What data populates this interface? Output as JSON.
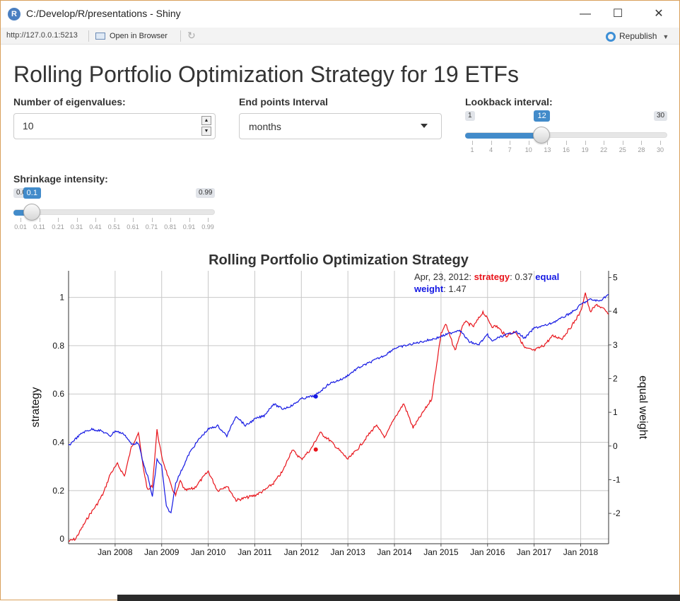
{
  "window": {
    "title": "C:/Develop/R/presentations - Shiny",
    "icon_letter": "R",
    "minimize": "—",
    "maximize": "☐",
    "close": "✕"
  },
  "toolbar": {
    "url": "http://127.0.0.1:5213",
    "open_in_browser": "Open in Browser",
    "republish": "Republish"
  },
  "page": {
    "title": "Rolling Portfolio Optimization Strategy for 19 ETFs"
  },
  "inputs": {
    "eigen": {
      "label": "Number of eigenvalues:",
      "value": "10"
    },
    "endpoints": {
      "label": "End points Interval",
      "selected": "months"
    },
    "lookback": {
      "label": "Lookback interval:",
      "min": "1",
      "max": "30",
      "value": "12",
      "fraction": 0.3793,
      "ticks": [
        "1",
        "4",
        "7",
        "10",
        "13",
        "16",
        "19",
        "22",
        "25",
        "28",
        "30"
      ]
    },
    "shrink": {
      "label": "Shrinkage intensity:",
      "min": "0.01",
      "max": "0.99",
      "value": "0.1",
      "fraction": 0.0918,
      "ticks": [
        "0.01",
        "0.11",
        "0.21",
        "0.31",
        "0.41",
        "0.51",
        "0.61",
        "0.71",
        "0.81",
        "0.91",
        "0.99"
      ]
    }
  },
  "chart_data": {
    "type": "line",
    "title": "Rolling Portfolio Optimization Strategy",
    "ylabel": "strategy",
    "y2label": "equal weight",
    "ylim": [
      -0.02,
      1.11
    ],
    "y2lim": [
      -2.9,
      5.2
    ],
    "yticks": [
      "0",
      "0.2",
      "0.4",
      "0.6",
      "0.8",
      "1"
    ],
    "y2ticks": [
      "-2",
      "-1",
      "0",
      "1",
      "2",
      "3",
      "4",
      "5"
    ],
    "xlim": [
      2007.0,
      2018.6
    ],
    "xticks": [
      "Jan 2008",
      "Jan 2009",
      "Jan 2010",
      "Jan 2011",
      "Jan 2012",
      "Jan 2013",
      "Jan 2014",
      "Jan 2015",
      "Jan 2016",
      "Jan 2017",
      "Jan 2018"
    ],
    "grid": true,
    "legend": {
      "date": "Apr, 23, 2012:",
      "s1": "strategy",
      "v1": ": 0.37",
      "s2": "equal",
      "s2b": "weight",
      "v2": ": 1.47"
    },
    "series": [
      {
        "name": "strategy",
        "color": "#e8141b",
        "axis": "left",
        "x": [
          2007.0,
          2007.15,
          2007.3,
          2007.45,
          2007.6,
          2007.75,
          2007.9,
          2008.05,
          2008.2,
          2008.35,
          2008.5,
          2008.6,
          2008.7,
          2008.8,
          2008.9,
          2009.0,
          2009.1,
          2009.2,
          2009.3,
          2009.4,
          2009.5,
          2009.7,
          2010.0,
          2010.2,
          2010.4,
          2010.6,
          2010.8,
          2011.0,
          2011.2,
          2011.4,
          2011.6,
          2011.8,
          2012.0,
          2012.2,
          2012.4,
          2012.6,
          2012.8,
          2013.0,
          2013.2,
          2013.4,
          2013.6,
          2013.8,
          2014.0,
          2014.2,
          2014.4,
          2014.6,
          2014.8,
          2015.0,
          2015.1,
          2015.3,
          2015.5,
          2015.7,
          2015.9,
          2016.1,
          2016.2,
          2016.4,
          2016.6,
          2016.8,
          2017.0,
          2017.2,
          2017.4,
          2017.6,
          2017.8,
          2018.0,
          2018.1,
          2018.2,
          2018.35,
          2018.5,
          2018.6
        ],
        "values": [
          -0.01,
          0.0,
          0.05,
          0.1,
          0.14,
          0.19,
          0.27,
          0.31,
          0.26,
          0.38,
          0.44,
          0.3,
          0.2,
          0.22,
          0.45,
          0.34,
          0.28,
          0.22,
          0.18,
          0.24,
          0.2,
          0.21,
          0.28,
          0.2,
          0.22,
          0.16,
          0.17,
          0.18,
          0.2,
          0.23,
          0.28,
          0.37,
          0.33,
          0.37,
          0.44,
          0.41,
          0.37,
          0.33,
          0.37,
          0.42,
          0.47,
          0.42,
          0.5,
          0.56,
          0.46,
          0.52,
          0.58,
          0.85,
          0.89,
          0.78,
          0.9,
          0.88,
          0.94,
          0.88,
          0.88,
          0.84,
          0.86,
          0.79,
          0.78,
          0.8,
          0.84,
          0.83,
          0.88,
          0.94,
          1.02,
          0.94,
          0.97,
          0.95,
          0.93
        ]
      },
      {
        "name": "equal weight",
        "color": "#1418e3",
        "axis": "right",
        "x": [
          2007.0,
          2007.1,
          2007.3,
          2007.5,
          2007.7,
          2007.9,
          2008.0,
          2008.2,
          2008.35,
          2008.5,
          2008.6,
          2008.7,
          2008.8,
          2008.9,
          2009.0,
          2009.1,
          2009.2,
          2009.3,
          2009.4,
          2009.6,
          2009.8,
          2010.0,
          2010.2,
          2010.4,
          2010.6,
          2010.8,
          2011.0,
          2011.2,
          2011.4,
          2011.6,
          2011.8,
          2012.0,
          2012.3,
          2012.6,
          2012.9,
          2013.2,
          2013.5,
          2013.8,
          2014.0,
          2014.3,
          2014.6,
          2014.9,
          2015.2,
          2015.4,
          2015.6,
          2015.8,
          2016.0,
          2016.1,
          2016.2,
          2016.4,
          2016.6,
          2016.8,
          2017.0,
          2017.3,
          2017.6,
          2017.9,
          2018.0,
          2018.2,
          2018.4,
          2018.6
        ],
        "values": [
          0.0,
          0.15,
          0.4,
          0.5,
          0.45,
          0.3,
          0.45,
          0.35,
          0.05,
          0.1,
          -0.5,
          -0.9,
          -1.5,
          -0.4,
          -0.6,
          -1.8,
          -2.0,
          -1.1,
          -0.8,
          -0.2,
          0.2,
          0.5,
          0.6,
          0.3,
          0.9,
          0.6,
          0.8,
          0.9,
          1.25,
          1.1,
          1.2,
          1.4,
          1.5,
          1.85,
          2.0,
          2.3,
          2.5,
          2.7,
          2.9,
          3.0,
          3.1,
          3.2,
          3.35,
          3.45,
          3.1,
          3.0,
          3.3,
          3.1,
          3.2,
          3.3,
          3.4,
          3.2,
          3.5,
          3.6,
          3.8,
          4.05,
          4.2,
          4.35,
          4.3,
          4.5
        ]
      }
    ]
  }
}
